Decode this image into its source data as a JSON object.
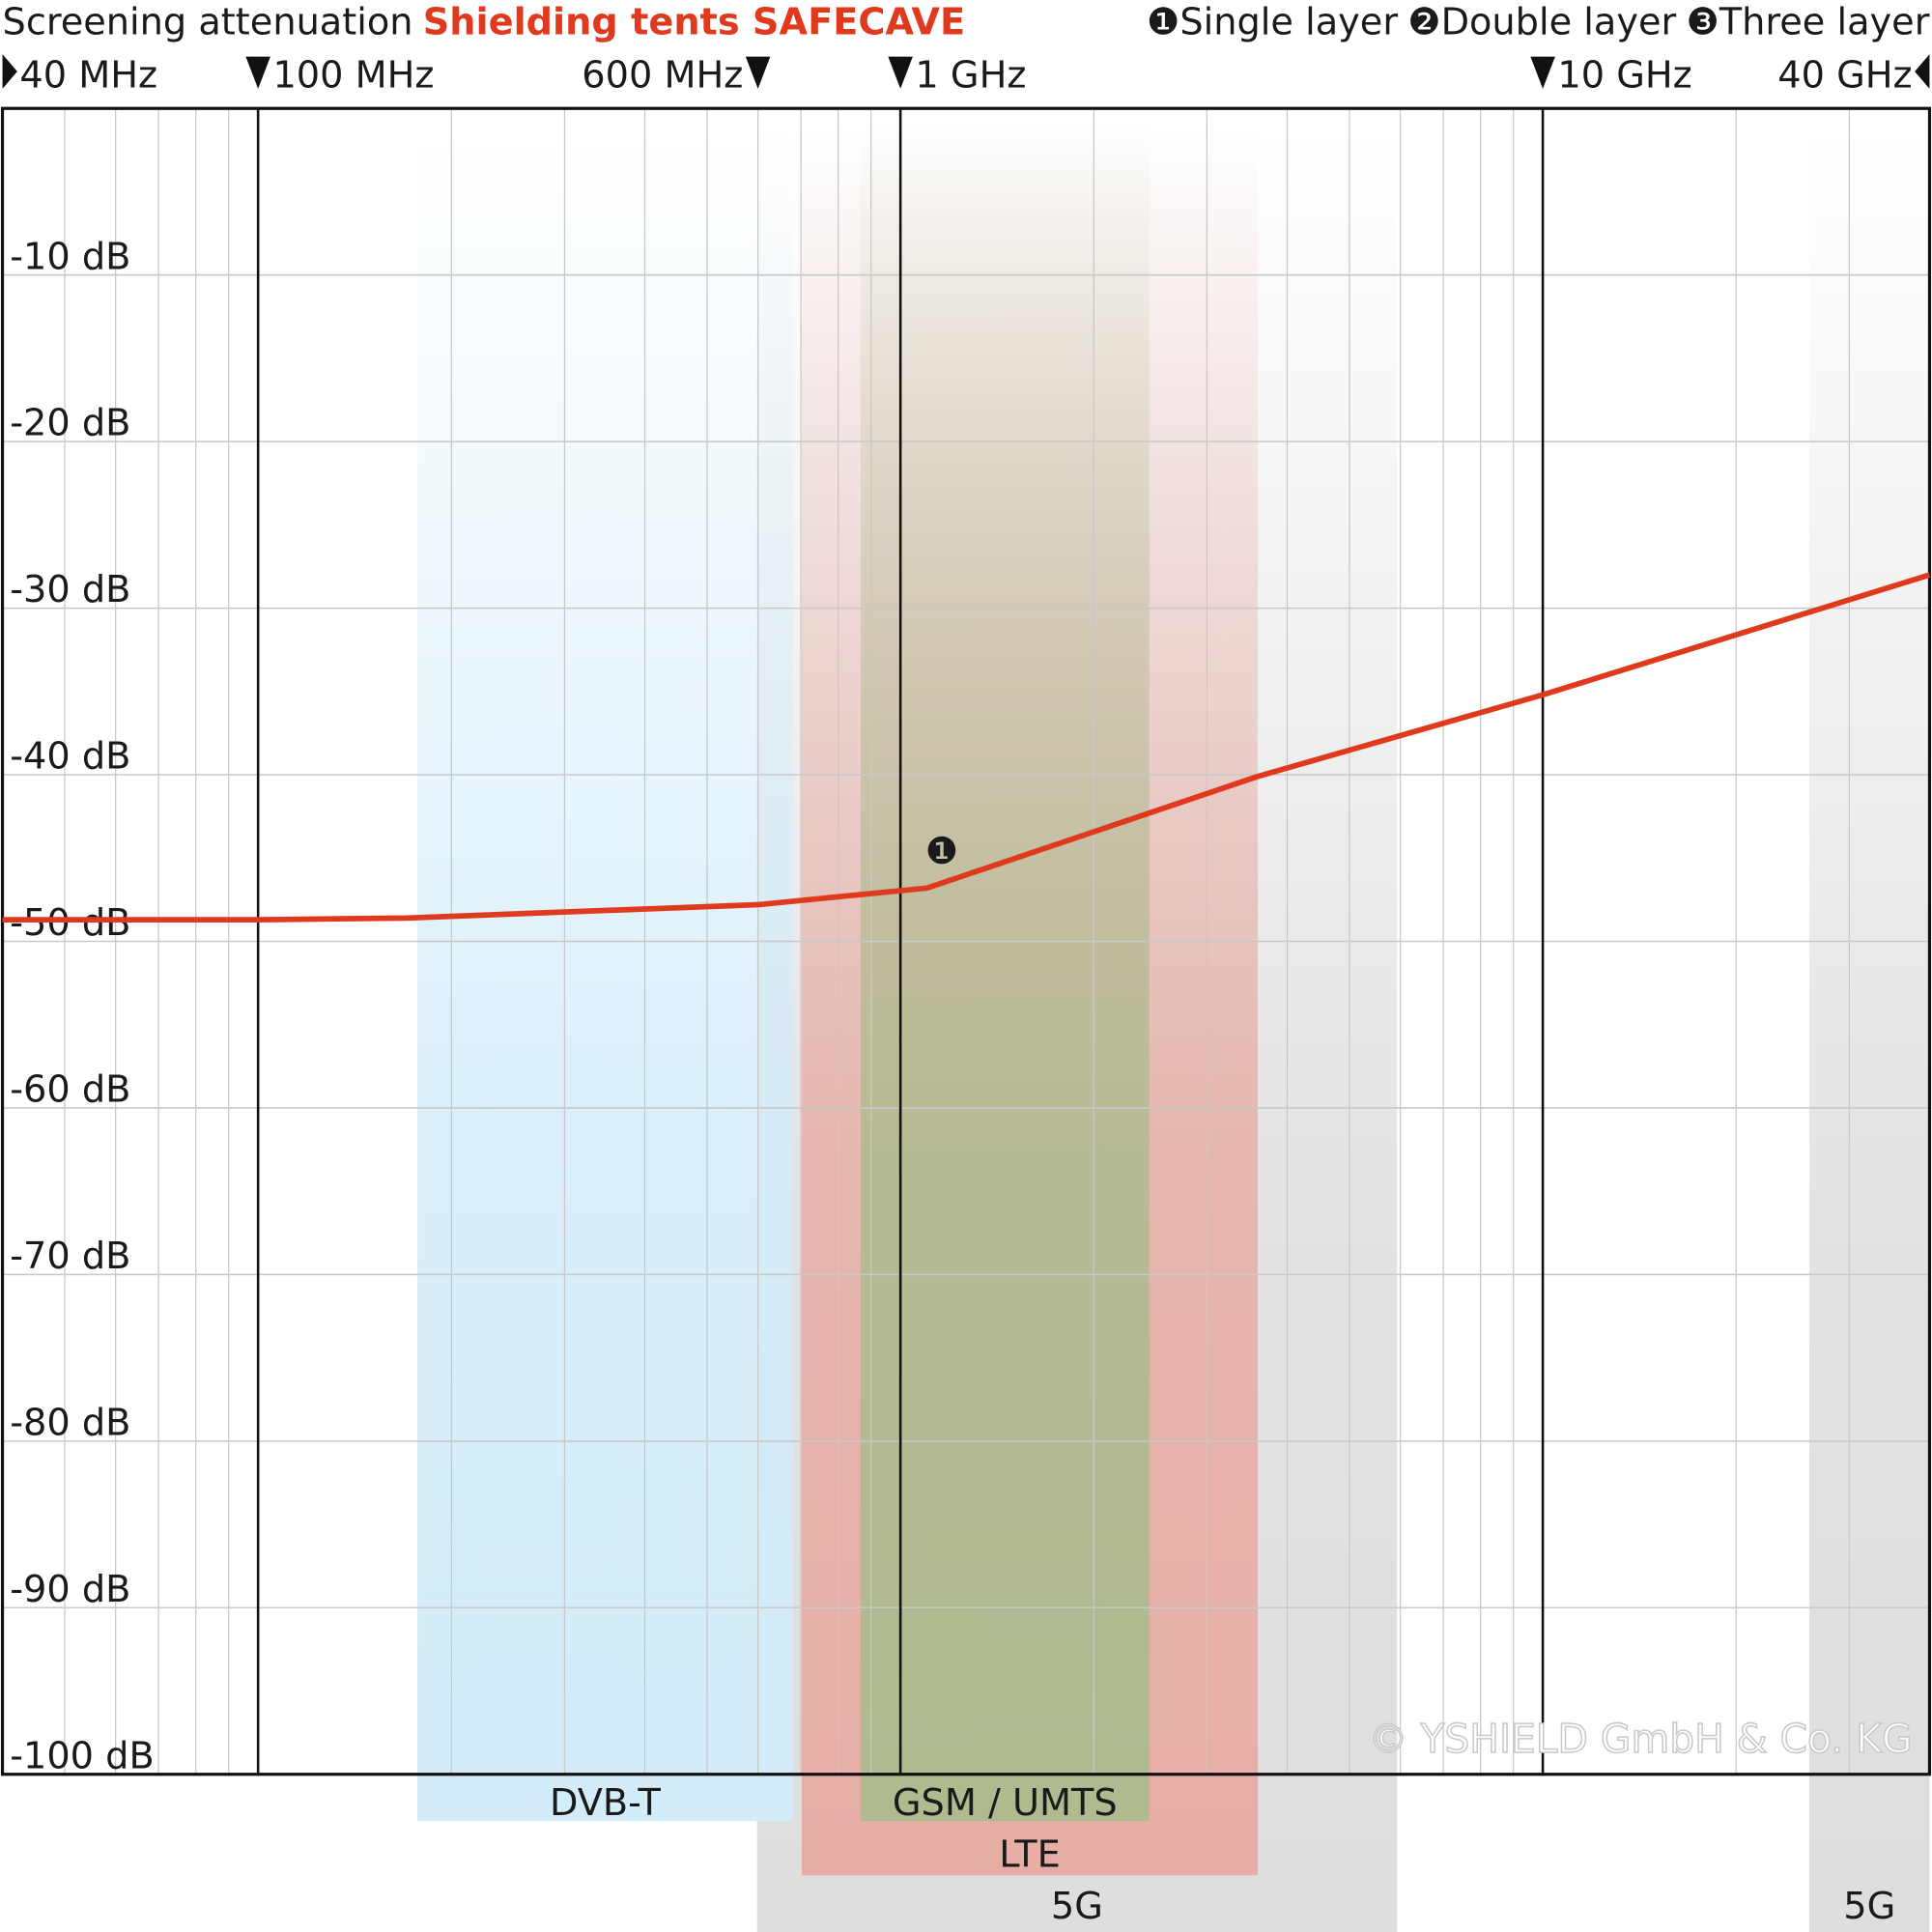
{
  "chart_data": {
    "type": "line",
    "title": "Screening attenuation",
    "subtitle": "Shielding tents SAFECAVE",
    "x_log": true,
    "xlim": [
      40,
      40000
    ],
    "xticks": [
      {
        "value": 40,
        "label": "40 MHz"
      },
      {
        "value": 100,
        "label": "100 MHz"
      },
      {
        "value": 600,
        "label": "600 MHz"
      },
      {
        "value": 1000,
        "label": "1 GHz"
      },
      {
        "value": 10000,
        "label": "10 GHz"
      },
      {
        "value": 40000,
        "label": "40 GHz"
      }
    ],
    "ylim": [
      -100,
      0
    ],
    "yticks": [
      {
        "value": -10,
        "label": "-10 dB"
      },
      {
        "value": -20,
        "label": "-20 dB"
      },
      {
        "value": -30,
        "label": "-30 dB"
      },
      {
        "value": -40,
        "label": "-40 dB"
      },
      {
        "value": -50,
        "label": "-50 dB"
      },
      {
        "value": -60,
        "label": "-60 dB"
      },
      {
        "value": -70,
        "label": "-70 dB"
      },
      {
        "value": -80,
        "label": "-80 dB"
      },
      {
        "value": -90,
        "label": "-90 dB"
      },
      {
        "value": -100,
        "label": "-100 dB"
      }
    ],
    "grid": true,
    "x": [
      40,
      100,
      170,
      600,
      1100,
      3600,
      10000,
      40000
    ],
    "series": [
      {
        "name": "Single layer",
        "marker": "❶",
        "color": "#e03a1e",
        "values": [
          -48.7,
          -48.7,
          -48.6,
          -47.8,
          -46.8,
          -40.1,
          -35.2,
          -28.0
        ]
      }
    ],
    "legend_extra": [
      {
        "marker": "❷",
        "name": "Double layer"
      },
      {
        "marker": "❸",
        "name": "Three layer"
      }
    ],
    "bands": [
      {
        "label": "DVB-T",
        "from": 177,
        "to": 680,
        "color": "#d3ecf9"
      },
      {
        "label": "GSM / UMTS",
        "from": 867,
        "to": 2440,
        "color": "#aebb8f"
      },
      {
        "label": "LTE",
        "from": 702,
        "to": 3600,
        "color": "#e7aea6"
      },
      {
        "label": "5G",
        "from": 598,
        "to": 5930,
        "color": "#dedede"
      },
      {
        "label": "5G",
        "from": 26000,
        "to": 40000,
        "color": "#dedede"
      }
    ],
    "copyright": "© YSHIELD GmbH & Co. KG"
  }
}
